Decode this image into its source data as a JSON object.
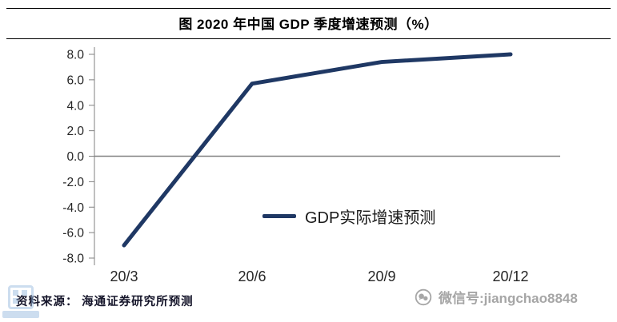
{
  "title_bar": {
    "title": "图 2020 年中国 GDP 季度增速预测（%）"
  },
  "chart_data": {
    "type": "line",
    "title": "图 2020 年中国 GDP 季度增速预测（%）",
    "categories": [
      "20/3",
      "20/6",
      "20/9",
      "20/12"
    ],
    "series": [
      {
        "name": "GDP实际增速预测",
        "values": [
          -7.0,
          5.7,
          7.4,
          8.0
        ],
        "color": "#1f3864"
      }
    ],
    "xlabel": "",
    "ylabel": "",
    "ylim": [
      -8,
      8
    ],
    "yticks": [
      8,
      6,
      4,
      2,
      0,
      -2,
      -4,
      -6,
      -8
    ],
    "ytick_labels": [
      "8.0",
      "6.0",
      "4.0",
      "2.0",
      "0.0",
      "-2.0",
      "-4.0",
      "-6.0",
      "-8.0"
    ],
    "grid": false,
    "legend_position": "inside-bottom-center",
    "legend_label": "GDP实际增速预测"
  },
  "footer": {
    "source": "资料来源： 海通证券研究所预测",
    "wechat": "微信号:jiangchao8848"
  },
  "icons": {
    "wechat": "wechat-icon"
  },
  "colors": {
    "line": "#1f3864",
    "axis": "#808080",
    "text": "#262626",
    "wechat_text": "#a6a6a6"
  }
}
